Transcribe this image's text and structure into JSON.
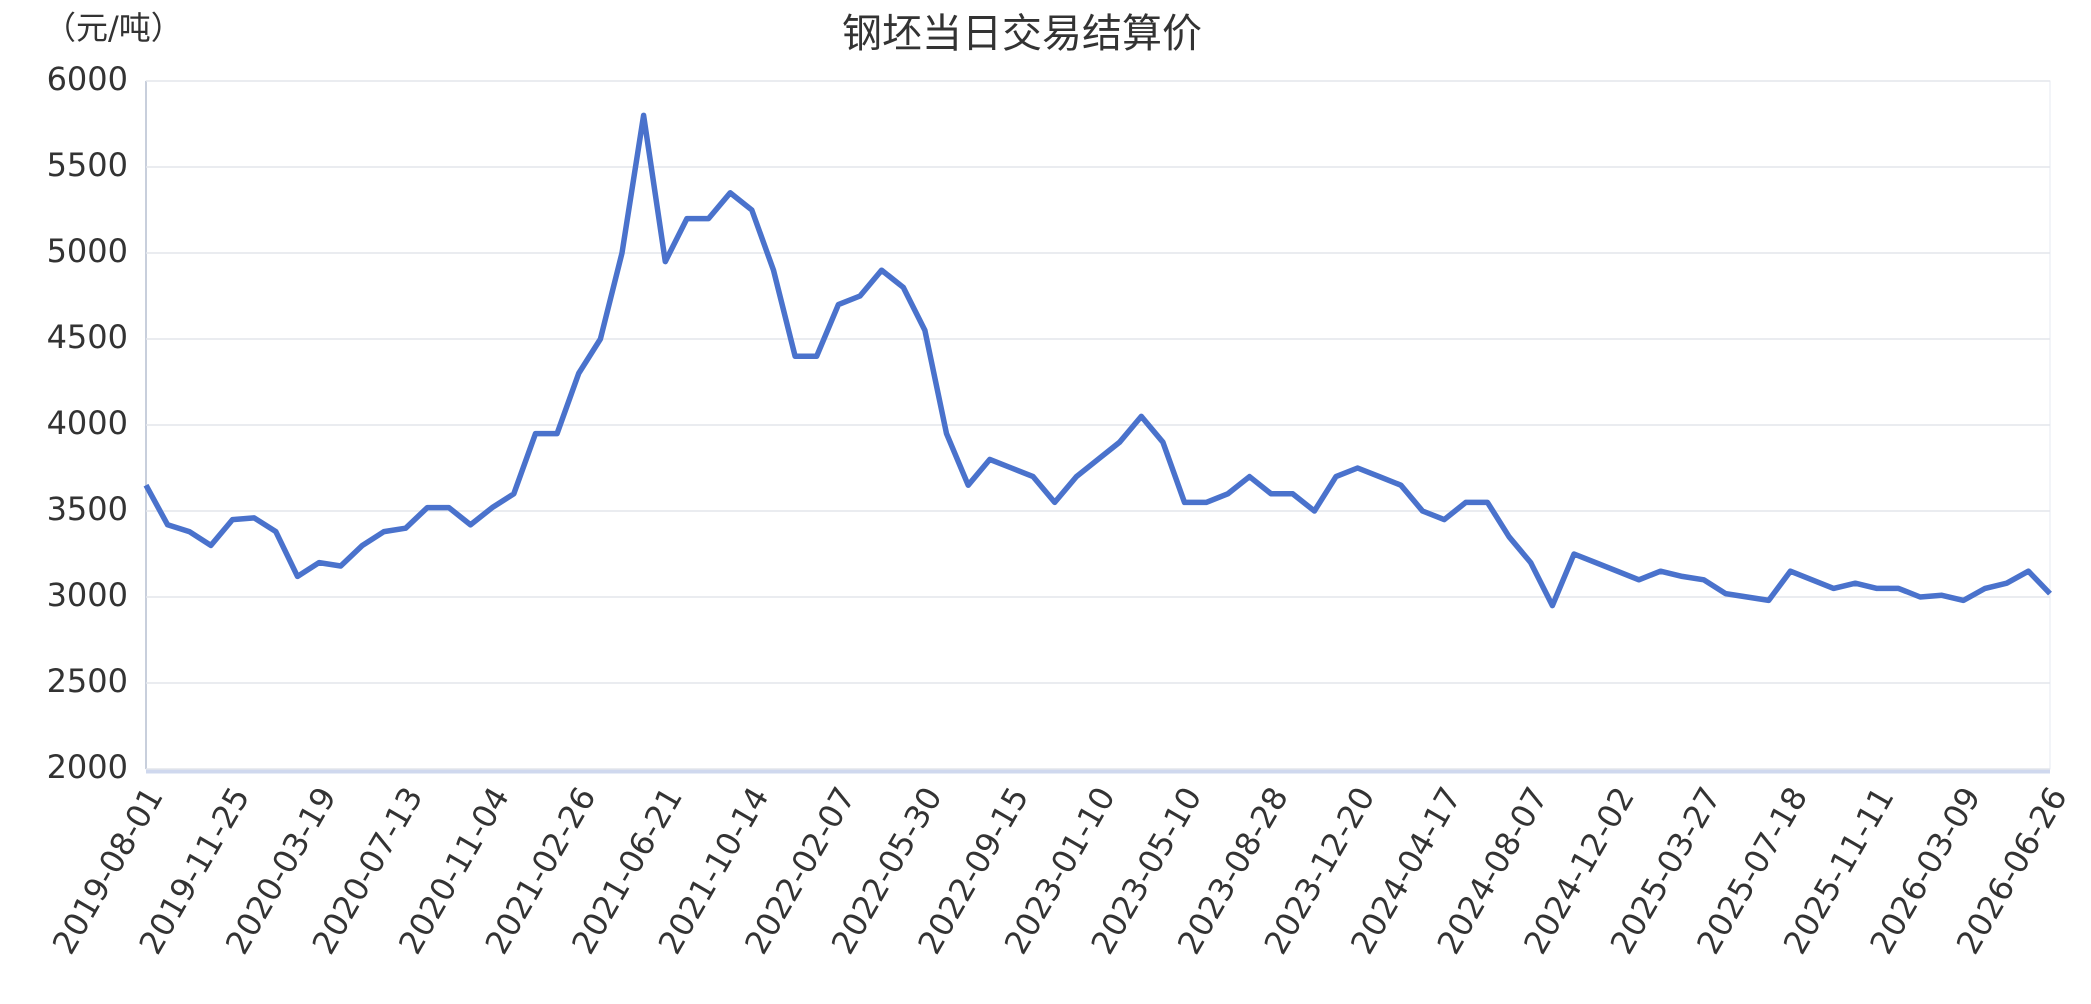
{
  "chart_data": {
    "type": "line",
    "title": "钢坯当日交易结算价",
    "y_unit": "（元/吨）",
    "categories": [
      "2019-08-01",
      null,
      null,
      null,
      "2019-11-25",
      null,
      null,
      null,
      "2020-03-19",
      null,
      null,
      null,
      "2020-07-13",
      null,
      null,
      null,
      "2020-11-04",
      null,
      null,
      null,
      "2021-02-26",
      null,
      null,
      null,
      "2021-06-21",
      null,
      null,
      null,
      "2021-10-14",
      null,
      null,
      null,
      "2022-02-07",
      null,
      null,
      null,
      "2022-05-30",
      null,
      null,
      null,
      "2022-09-15",
      null,
      null,
      null,
      "2023-01-10",
      null,
      null,
      null,
      "2023-05-10",
      null,
      null,
      null,
      "2023-08-28",
      null,
      null,
      null,
      "2023-12-20",
      null,
      null,
      null,
      "2024-04-17",
      null,
      null,
      null,
      "2024-08-07",
      null,
      null,
      null,
      "2024-12-02",
      null,
      null,
      null,
      "2025-03-27",
      null,
      null,
      null,
      "2025-07-18",
      null,
      null,
      null,
      "2025-11-11",
      null,
      null,
      null,
      "2026-03-09",
      null,
      null,
      null,
      "2026-06-26"
    ],
    "series": [
      {
        "color": "#4a72cc",
        "values": [
          3650,
          3420,
          3380,
          3300,
          3450,
          3460,
          3380,
          3120,
          3200,
          3180,
          3300,
          3380,
          3400,
          3520,
          3520,
          3420,
          3520,
          3600,
          3950,
          3950,
          4300,
          4500,
          5000,
          5800,
          4950,
          5200,
          5200,
          5350,
          5250,
          4900,
          4400,
          4400,
          4700,
          4750,
          4900,
          4800,
          4550,
          3950,
          3650,
          3800,
          3750,
          3700,
          3550,
          3700,
          3800,
          3900,
          4050,
          3900,
          3550,
          3550,
          3600,
          3700,
          3600,
          3600,
          3500,
          3700,
          3750,
          3700,
          3650,
          3500,
          3450,
          3550,
          3550,
          3350,
          3200,
          2950,
          3250,
          3200,
          3150,
          3100,
          3150,
          3120,
          3100,
          3020,
          3000,
          2980,
          3150,
          3100,
          3050,
          3080,
          3050,
          3050,
          3000,
          3010,
          2980,
          3050,
          3080,
          3150,
          3020
        ]
      }
    ],
    "ylim": [
      2000,
      6000
    ],
    "yticks": [
      2000,
      2500,
      3000,
      3500,
      4000,
      4500,
      5000,
      5500,
      6000
    ],
    "grid": true
  }
}
